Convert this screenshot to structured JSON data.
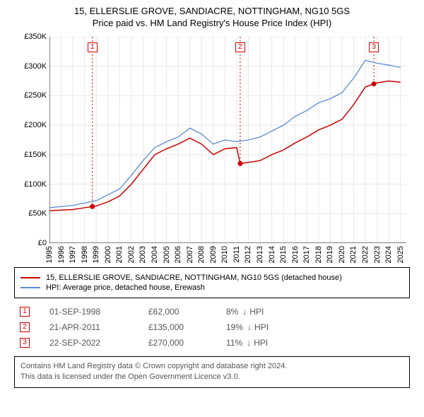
{
  "title": {
    "line1": "15, ELLERSLIE GROVE, SANDIACRE, NOTTINGHAM, NG10 5GS",
    "line2": "Price paid vs. HM Land Registry's House Price Index (HPI)"
  },
  "chart": {
    "type": "line",
    "background_color": "#ffffff",
    "grid_color": "#e8e8e8",
    "axis_color": "#000000",
    "dash_color": "#cc0000",
    "xlim": [
      1995,
      2025.5
    ],
    "ylim": [
      0,
      350
    ],
    "y_ticks": [
      0,
      50,
      100,
      150,
      200,
      250,
      300,
      350
    ],
    "y_tick_labels": [
      "£0",
      "£50K",
      "£100K",
      "£150K",
      "£200K",
      "£250K",
      "£300K",
      "£350K"
    ],
    "x_ticks": [
      1995,
      1996,
      1997,
      1998,
      1999,
      2000,
      2001,
      2002,
      2003,
      2004,
      2005,
      2006,
      2007,
      2008,
      2009,
      2010,
      2011,
      2012,
      2013,
      2014,
      2015,
      2016,
      2017,
      2018,
      2019,
      2020,
      2021,
      2022,
      2023,
      2024,
      2025
    ],
    "series": [
      {
        "name": "price_paid",
        "color": "#cc0000",
        "line_width": 1.5,
        "points": [
          [
            1995,
            55
          ],
          [
            1996,
            56
          ],
          [
            1997,
            57
          ],
          [
            1998,
            60
          ],
          [
            1998.67,
            62
          ],
          [
            1999,
            63
          ],
          [
            2000,
            70
          ],
          [
            2001,
            80
          ],
          [
            2002,
            100
          ],
          [
            2003,
            125
          ],
          [
            2004,
            150
          ],
          [
            2005,
            160
          ],
          [
            2006,
            168
          ],
          [
            2007,
            178
          ],
          [
            2008,
            168
          ],
          [
            2009,
            150
          ],
          [
            2010,
            160
          ],
          [
            2011,
            162
          ],
          [
            2011.3,
            135
          ],
          [
            2012,
            137
          ],
          [
            2013,
            140
          ],
          [
            2014,
            150
          ],
          [
            2015,
            158
          ],
          [
            2016,
            170
          ],
          [
            2017,
            180
          ],
          [
            2018,
            192
          ],
          [
            2019,
            200
          ],
          [
            2020,
            210
          ],
          [
            2021,
            235
          ],
          [
            2022,
            265
          ],
          [
            2022.73,
            270
          ],
          [
            2023,
            272
          ],
          [
            2024,
            275
          ],
          [
            2025,
            273
          ]
        ]
      },
      {
        "name": "hpi",
        "color": "#5b8bd4",
        "line_width": 1.3,
        "points": [
          [
            1995,
            60
          ],
          [
            1996,
            62
          ],
          [
            1997,
            64
          ],
          [
            1998,
            68
          ],
          [
            1999,
            72
          ],
          [
            2000,
            82
          ],
          [
            2001,
            92
          ],
          [
            2002,
            115
          ],
          [
            2003,
            140
          ],
          [
            2004,
            162
          ],
          [
            2005,
            172
          ],
          [
            2006,
            180
          ],
          [
            2007,
            195
          ],
          [
            2008,
            185
          ],
          [
            2009,
            168
          ],
          [
            2010,
            175
          ],
          [
            2011,
            172
          ],
          [
            2012,
            175
          ],
          [
            2013,
            180
          ],
          [
            2014,
            190
          ],
          [
            2015,
            200
          ],
          [
            2016,
            215
          ],
          [
            2017,
            225
          ],
          [
            2018,
            238
          ],
          [
            2019,
            245
          ],
          [
            2020,
            255
          ],
          [
            2021,
            280
          ],
          [
            2022,
            310
          ],
          [
            2023,
            305
          ],
          [
            2024,
            302
          ],
          [
            2025,
            298
          ]
        ]
      }
    ],
    "sale_markers": [
      {
        "num": "1",
        "x": 1998.67,
        "y": 62,
        "box_top": 8
      },
      {
        "num": "2",
        "x": 2011.3,
        "y": 135,
        "box_top": 8
      },
      {
        "num": "3",
        "x": 2022.73,
        "y": 270,
        "box_top": 8
      }
    ]
  },
  "legend": {
    "items": [
      {
        "color": "#cc0000",
        "label": "15, ELLERSLIE GROVE, SANDIACRE, NOTTINGHAM, NG10 5GS (detached house)"
      },
      {
        "color": "#5b8bd4",
        "label": "HPI: Average price, detached house, Erewash"
      }
    ]
  },
  "sales": [
    {
      "num": "1",
      "date": "01-SEP-1998",
      "price": "£62,000",
      "pct": "8%",
      "suffix": "HPI"
    },
    {
      "num": "2",
      "date": "21-APR-2011",
      "price": "£135,000",
      "pct": "19%",
      "suffix": "HPI"
    },
    {
      "num": "3",
      "date": "22-SEP-2022",
      "price": "£270,000",
      "pct": "11%",
      "suffix": "HPI"
    }
  ],
  "footer": {
    "line1": "Contains HM Land Registry data © Crown copyright and database right 2024.",
    "line2": "This data is licensed under the Open Government Licence v3.0."
  }
}
